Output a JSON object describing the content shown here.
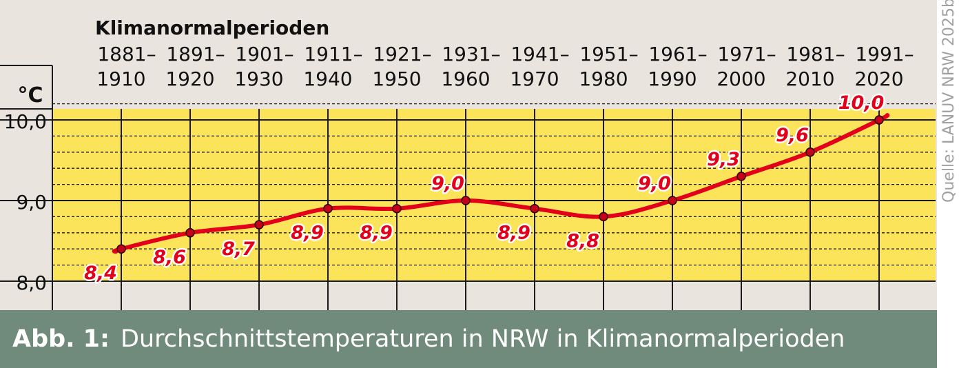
{
  "chart_data": {
    "type": "line",
    "title": "Klimanormalperioden",
    "ylabel": "°C",
    "categories": [
      "1881–\n1910",
      "1891–\n1920",
      "1901–\n1930",
      "1911–\n1940",
      "1921–\n1950",
      "1931–\n1960",
      "1941–\n1970",
      "1951–\n1980",
      "1961–\n1990",
      "1971–\n2000",
      "1981–\n2010",
      "1991–\n2020"
    ],
    "category_lines": [
      [
        "1881–",
        "1910"
      ],
      [
        "1891–",
        "1920"
      ],
      [
        "1901–",
        "1930"
      ],
      [
        "1911–",
        "1940"
      ],
      [
        "1921–",
        "1950"
      ],
      [
        "1931–",
        "1960"
      ],
      [
        "1941–",
        "1970"
      ],
      [
        "1951–",
        "1980"
      ],
      [
        "1961–",
        "1990"
      ],
      [
        "1971–",
        "2000"
      ],
      [
        "1981–",
        "2010"
      ],
      [
        "1991–",
        "2020"
      ]
    ],
    "series": [
      {
        "values": [
          8.4,
          8.6,
          8.7,
          8.9,
          8.9,
          9.0,
          8.9,
          8.8,
          9.0,
          9.3,
          9.6,
          10.0
        ]
      }
    ],
    "data_labels": [
      "8,4",
      "8,6",
      "8,7",
      "8,9",
      "8,9",
      "9,0",
      "8,9",
      "8,8",
      "9,0",
      "9,3",
      "9,6",
      "10,0"
    ],
    "label_position": [
      "below",
      "below",
      "below",
      "below",
      "below",
      "above",
      "below",
      "below",
      "above",
      "above",
      "above",
      "above"
    ],
    "ylim": [
      8.0,
      10.25
    ],
    "yticks": [
      8.0,
      9.0,
      10.0
    ],
    "ytick_labels": [
      "8,0",
      "9,0",
      "10,0"
    ],
    "grid": true,
    "minor_grid_step": 0.2,
    "colors": {
      "panel": "#e9e5de",
      "plot_area": "#fbe35a",
      "line": "#e2001a",
      "marker": "#c4001a",
      "grid": "#1a1a1a",
      "label_text": "#e2001a",
      "label_outline": "#ffffff"
    }
  },
  "caption": {
    "prefix": "Abb. 1:",
    "text": "Durchschnittstemperaturen in NRW in Klimanormalperioden",
    "background": "#708b7b"
  },
  "source": "Quelle: LANUV NRW 2025b"
}
